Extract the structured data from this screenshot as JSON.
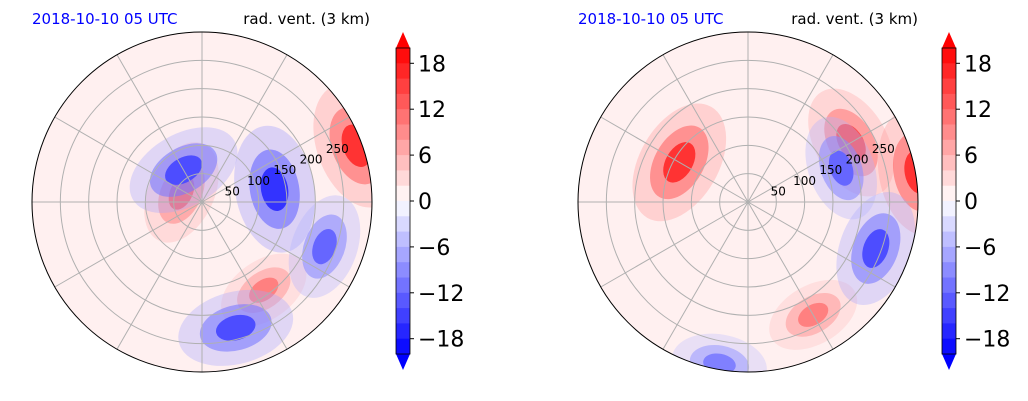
{
  "chart_data": [
    {
      "type": "heatmap",
      "title_left": "2018-10-10 05 UTC",
      "title_right": "rad. vent. (3 km)",
      "title_left_color": "#0000ff",
      "projection": "polar",
      "range_rings_km": [
        50,
        100,
        150,
        200,
        250
      ],
      "range_labels": [
        "50",
        "100",
        "150",
        "200",
        "250"
      ],
      "radial_spokes_deg": [
        0,
        30,
        60,
        90,
        120,
        150,
        180,
        210,
        240,
        270,
        300,
        330
      ],
      "grid": true,
      "field_features": [
        {
          "az_deg": 70,
          "range_km": 290,
          "value": 16
        },
        {
          "az_deg": 295,
          "range_km": 40,
          "value": 12
        },
        {
          "az_deg": 145,
          "range_km": 190,
          "value": 10
        },
        {
          "az_deg": 80,
          "range_km": 130,
          "value": -16
        },
        {
          "az_deg": 110,
          "range_km": 230,
          "value": -12
        },
        {
          "az_deg": 165,
          "range_km": 230,
          "value": -14
        },
        {
          "az_deg": 330,
          "range_km": 65,
          "value": -14
        }
      ],
      "colorbar": {
        "ticks": [
          18,
          12,
          6,
          0,
          -6,
          -12,
          -18
        ],
        "tick_labels": [
          "18",
          "12",
          "6",
          "0",
          "−6",
          "−12",
          "−18"
        ],
        "range": [
          -20,
          20
        ],
        "extend": "both",
        "colormap": "bwr"
      }
    },
    {
      "type": "heatmap",
      "title_left": "2018-10-10 05 UTC",
      "title_right": "rad. vent. (3 km)",
      "title_left_color": "#0000ff",
      "projection": "polar",
      "range_rings_km": [
        50,
        100,
        150,
        200,
        250
      ],
      "range_labels": [
        "50",
        "100",
        "150",
        "200",
        "250"
      ],
      "radial_spokes_deg": [
        0,
        30,
        60,
        90,
        120,
        150,
        180,
        210,
        240,
        270,
        300,
        330
      ],
      "grid": true,
      "field_features": [
        {
          "az_deg": 300,
          "range_km": 140,
          "value": 16
        },
        {
          "az_deg": 60,
          "range_km": 210,
          "value": 14
        },
        {
          "az_deg": 80,
          "range_km": 305,
          "value": 16
        },
        {
          "az_deg": 150,
          "range_km": 230,
          "value": 10
        },
        {
          "az_deg": 110,
          "range_km": 240,
          "value": -14
        },
        {
          "az_deg": 190,
          "range_km": 290,
          "value": -10
        },
        {
          "az_deg": 70,
          "range_km": 175,
          "value": -12
        }
      ],
      "colorbar": {
        "ticks": [
          18,
          12,
          6,
          0,
          -6,
          -12,
          -18
        ],
        "tick_labels": [
          "18",
          "12",
          "6",
          "0",
          "−6",
          "−12",
          "−18"
        ],
        "range": [
          -20,
          20
        ],
        "extend": "both",
        "colormap": "bwr"
      }
    }
  ]
}
